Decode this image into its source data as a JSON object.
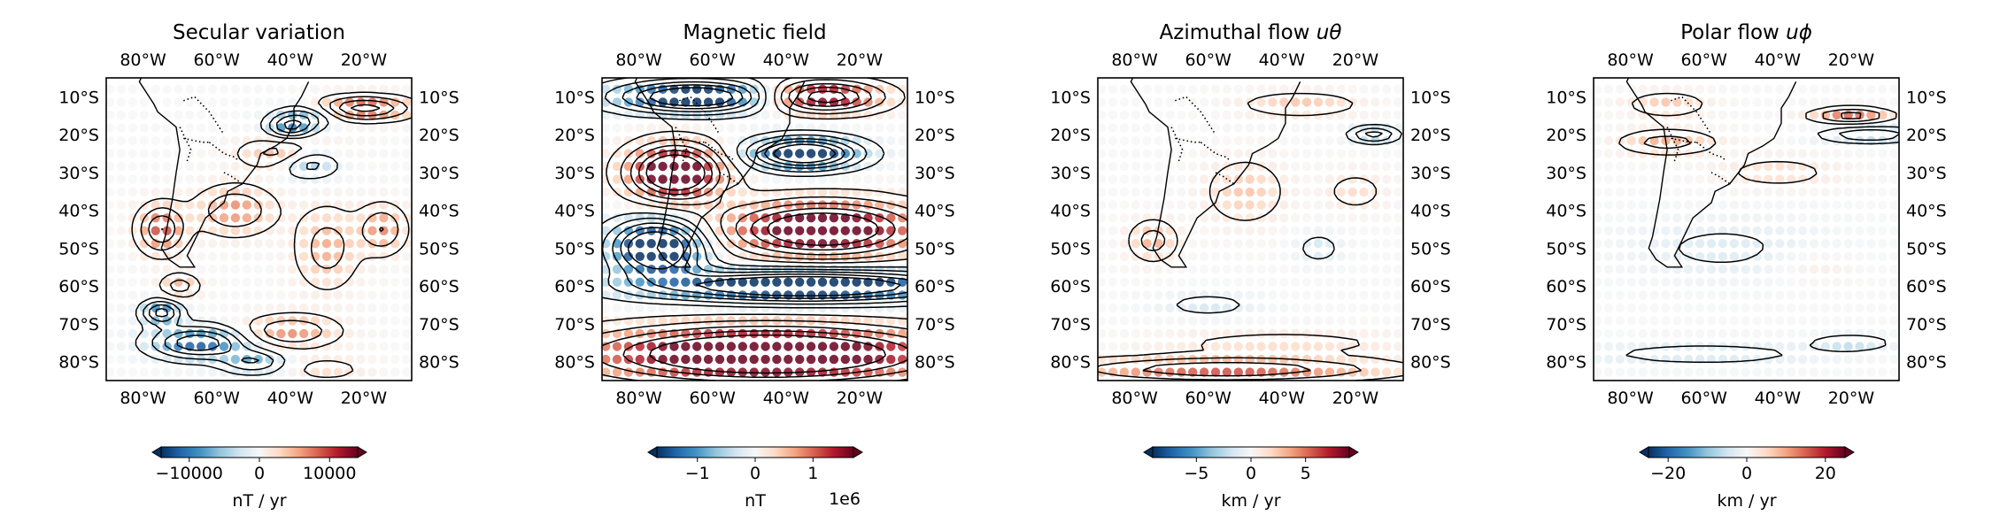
{
  "chart_data": [
    {
      "type": "heatmap",
      "title": "Secular variation",
      "title_var": "",
      "colorbar": {
        "min": -14000,
        "max": 14000,
        "ticks": [
          -10000,
          0,
          10000
        ],
        "tick_labels": [
          "−10000",
          "0",
          "10000"
        ],
        "label": "nT / yr",
        "offset_text": ""
      },
      "lon_ticks": [
        "80°W",
        "60°W",
        "40°W",
        "20°W"
      ],
      "lat_ticks": [
        "10°S",
        "20°S",
        "30°S",
        "40°S",
        "50°S",
        "60°S",
        "70°S",
        "80°S"
      ],
      "colormap": "RdBu_r",
      "blobs": [
        [
          -20,
          -13,
          0.8,
          12,
          3
        ],
        [
          -35,
          -27,
          -0.6,
          8,
          4
        ],
        [
          -40,
          -18,
          -0.7,
          6,
          3
        ],
        [
          -40,
          -25,
          0.5,
          12,
          4
        ],
        [
          -75,
          -45,
          0.7,
          6,
          6
        ],
        [
          -65,
          -75,
          -0.9,
          12,
          4
        ],
        [
          -75,
          -67,
          -0.8,
          5,
          3
        ],
        [
          -70,
          -60,
          0.4,
          5,
          3
        ],
        [
          -40,
          -72,
          0.5,
          12,
          4
        ],
        [
          -55,
          -40,
          0.5,
          10,
          6
        ],
        [
          -30,
          -50,
          0.4,
          8,
          10
        ],
        [
          -15,
          -45,
          0.5,
          6,
          6
        ],
        [
          -35,
          -15,
          -0.4,
          8,
          3
        ],
        [
          -50,
          -80,
          -0.5,
          8,
          3
        ],
        [
          -30,
          -82,
          0.2,
          10,
          3
        ]
      ]
    },
    {
      "type": "heatmap",
      "title": "Magnetic field",
      "title_var": "",
      "colorbar": {
        "min": -1.7,
        "max": 1.7,
        "ticks": [
          -1,
          0,
          1
        ],
        "tick_labels": [
          "−1",
          "0",
          "1"
        ],
        "label": "nT",
        "offset_text": "1e6"
      },
      "lon_ticks": [
        "80°W",
        "60°W",
        "40°W",
        "20°W"
      ],
      "lat_ticks": [
        "10°S",
        "20°S",
        "30°S",
        "40°S",
        "50°S",
        "60°S",
        "70°S",
        "80°S"
      ],
      "colormap": "RdBu_r",
      "blobs": [
        [
          -65,
          -10,
          -1.3,
          20,
          4
        ],
        [
          -30,
          -10,
          1.1,
          15,
          4
        ],
        [
          -70,
          -30,
          1.4,
          12,
          7
        ],
        [
          -35,
          -25,
          -1.3,
          14,
          4
        ],
        [
          -30,
          -45,
          1.3,
          25,
          7
        ],
        [
          -75,
          -50,
          -1.4,
          12,
          7
        ],
        [
          -35,
          -60,
          -1.4,
          40,
          4
        ],
        [
          -45,
          -78,
          1.5,
          45,
          7
        ]
      ]
    },
    {
      "type": "heatmap",
      "title": "Azimuthal flow ",
      "title_var": "uθ",
      "colorbar": {
        "min": -9,
        "max": 9,
        "ticks": [
          -5,
          0,
          5
        ],
        "tick_labels": [
          "−5",
          "0",
          "5"
        ],
        "label": "km / yr",
        "offset_text": ""
      },
      "lon_ticks": [
        "80°W",
        "60°W",
        "40°W",
        "20°W"
      ],
      "lat_ticks": [
        "10°S",
        "20°S",
        "30°S",
        "40°S",
        "50°S",
        "60°S",
        "70°S",
        "80°S"
      ],
      "colormap": "RdBu_r",
      "blobs": [
        [
          -35,
          -12,
          0.3,
          15,
          3
        ],
        [
          -15,
          -20,
          -0.6,
          6,
          2
        ],
        [
          -50,
          -35,
          0.3,
          10,
          8
        ],
        [
          -75,
          -48,
          0.4,
          6,
          5
        ],
        [
          -30,
          -50,
          -0.2,
          6,
          4
        ],
        [
          -20,
          -35,
          0.2,
          8,
          5
        ],
        [
          -60,
          -65,
          -0.2,
          12,
          3
        ],
        [
          -55,
          -82,
          0.7,
          40,
          3
        ],
        [
          -40,
          -75,
          0.2,
          30,
          3
        ]
      ]
    },
    {
      "type": "heatmap",
      "title": "Polar flow ",
      "title_var": "uϕ",
      "colorbar": {
        "min": -25,
        "max": 25,
        "ticks": [
          -20,
          0,
          20
        ],
        "tick_labels": [
          "−20",
          "0",
          "20"
        ],
        "label": "km / yr",
        "offset_text": ""
      },
      "lon_ticks": [
        "80°W",
        "60°W",
        "40°W",
        "20°W"
      ],
      "lat_ticks": [
        "10°S",
        "20°S",
        "30°S",
        "40°S",
        "50°S",
        "60°S",
        "70°S",
        "80°S"
      ],
      "colormap": "RdBu_r",
      "blobs": [
        [
          -70,
          -12,
          0.3,
          10,
          3
        ],
        [
          -20,
          -15,
          0.6,
          10,
          2
        ],
        [
          -15,
          -20,
          -0.5,
          12,
          2
        ],
        [
          -70,
          -22,
          0.4,
          12,
          3
        ],
        [
          -40,
          -30,
          0.2,
          15,
          4
        ],
        [
          -55,
          -50,
          -0.15,
          25,
          8
        ],
        [
          -30,
          -55,
          0.1,
          10,
          4
        ],
        [
          -60,
          -78,
          -0.2,
          30,
          3
        ],
        [
          -20,
          -75,
          -0.3,
          10,
          2
        ]
      ]
    }
  ]
}
